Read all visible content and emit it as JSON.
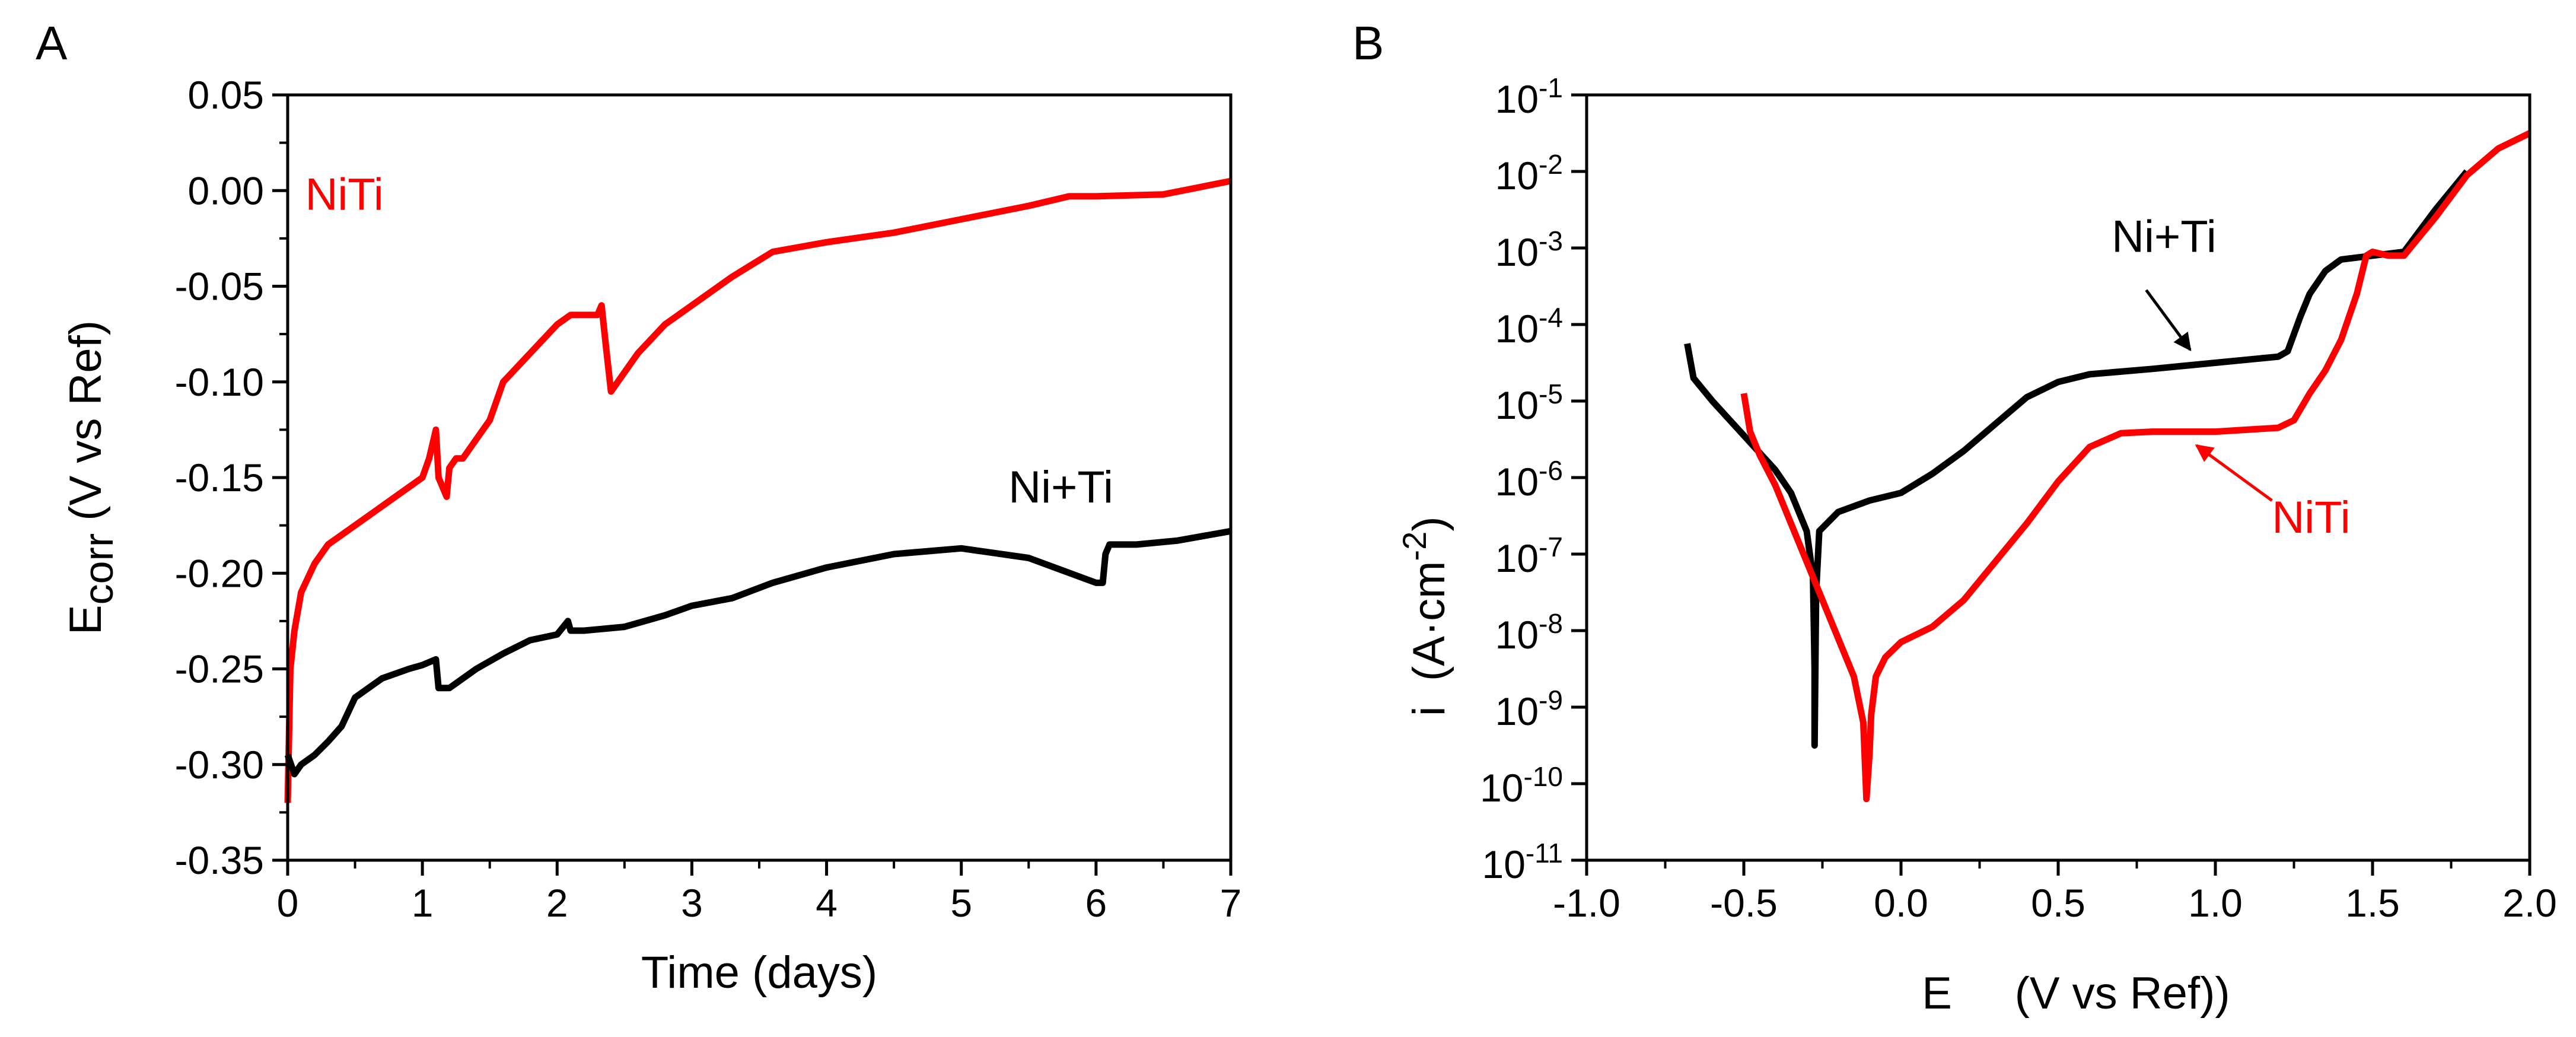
{
  "figure": {
    "panels": [
      "A",
      "B"
    ]
  },
  "chart_data": [
    {
      "panel": "A",
      "type": "line",
      "title": "",
      "xlabel": "Time (days)",
      "ylabel_main": "E",
      "ylabel_sub": "corr",
      "ylabel_rest": " (V vs Ref)",
      "xlim": [
        0,
        7
      ],
      "ylim": [
        -0.35,
        0.05
      ],
      "xticks": [
        0,
        1,
        2,
        3,
        4,
        5,
        6,
        7
      ],
      "xtick_labels": [
        "0",
        "1",
        "2",
        "3",
        "4",
        "5",
        "6",
        "7"
      ],
      "yticks": [
        -0.35,
        -0.3,
        -0.25,
        -0.2,
        -0.15,
        -0.1,
        -0.05,
        0.0,
        0.05
      ],
      "ytick_labels": [
        "-0.35",
        "-0.30",
        "-0.25",
        "-0.20",
        "-0.15",
        "-0.10",
        "-0.05",
        "0.00",
        "0.05"
      ],
      "grid": false,
      "series": [
        {
          "name": "NiTi",
          "color": "#ff0000",
          "x": [
            0,
            0.02,
            0.05,
            0.1,
            0.2,
            0.3,
            0.5,
            0.7,
            0.9,
            1.0,
            1.05,
            1.1,
            1.12,
            1.15,
            1.18,
            1.2,
            1.25,
            1.3,
            1.4,
            1.5,
            1.6,
            1.8,
            2.0,
            2.1,
            2.2,
            2.3,
            2.33,
            2.36,
            2.4,
            2.45,
            2.5,
            2.6,
            2.8,
            3.0,
            3.3,
            3.6,
            4.0,
            4.5,
            5.0,
            5.5,
            5.8,
            6.0,
            6.5,
            7.0
          ],
          "y": [
            -0.32,
            -0.25,
            -0.23,
            -0.21,
            -0.195,
            -0.185,
            -0.175,
            -0.165,
            -0.155,
            -0.15,
            -0.14,
            -0.125,
            -0.15,
            -0.155,
            -0.16,
            -0.145,
            -0.14,
            -0.14,
            -0.13,
            -0.12,
            -0.1,
            -0.085,
            -0.07,
            -0.065,
            -0.065,
            -0.065,
            -0.06,
            -0.08,
            -0.105,
            -0.1,
            -0.095,
            -0.085,
            -0.07,
            -0.06,
            -0.045,
            -0.032,
            -0.027,
            -0.022,
            -0.015,
            -0.008,
            -0.003,
            -0.003,
            -0.002,
            0.005
          ]
        },
        {
          "name": "Ni+Ti",
          "color": "#000000",
          "x": [
            0,
            0.05,
            0.1,
            0.2,
            0.3,
            0.4,
            0.5,
            0.7,
            0.9,
            1.0,
            1.1,
            1.12,
            1.2,
            1.4,
            1.6,
            1.8,
            2.0,
            2.08,
            2.1,
            2.2,
            2.5,
            2.8,
            3.0,
            3.3,
            3.6,
            4.0,
            4.5,
            5.0,
            5.5,
            6.0,
            6.05,
            6.07,
            6.1,
            6.3,
            6.6,
            7.0
          ],
          "y": [
            -0.295,
            -0.305,
            -0.3,
            -0.295,
            -0.288,
            -0.28,
            -0.265,
            -0.255,
            -0.25,
            -0.248,
            -0.245,
            -0.26,
            -0.26,
            -0.25,
            -0.242,
            -0.235,
            -0.232,
            -0.225,
            -0.23,
            -0.23,
            -0.228,
            -0.222,
            -0.217,
            -0.213,
            -0.205,
            -0.197,
            -0.19,
            -0.187,
            -0.192,
            -0.205,
            -0.205,
            -0.19,
            -0.185,
            -0.185,
            -0.183,
            -0.178
          ]
        }
      ],
      "annotations": [
        {
          "text": "NiTi",
          "color": "#ff0000",
          "x": 0.13,
          "y": -0.01,
          "anchor": "start"
        },
        {
          "text": "Ni+Ti",
          "color": "#000000",
          "x": 5.35,
          "y": -0.163,
          "anchor": "start"
        }
      ]
    },
    {
      "panel": "B",
      "type": "line",
      "title": "",
      "xlabel": "E     (V vs Ref))",
      "ylabel": "i  (A·cm",
      "ylabel_sup": "-2",
      "ylabel_close": ")",
      "xlim": [
        -1.0,
        2.0
      ],
      "ylog": true,
      "ylim_exp": [
        -11,
        -1
      ],
      "xticks": [
        -1.0,
        -0.5,
        0.0,
        0.5,
        1.0,
        1.5,
        2.0
      ],
      "xtick_labels": [
        "-1.0",
        "-0.5",
        "0.0",
        "0.5",
        "1.0",
        "1.5",
        "2.0"
      ],
      "yticks_exp": [
        -11,
        -10,
        -9,
        -8,
        -7,
        -6,
        -5,
        -4,
        -3,
        -2,
        -1
      ],
      "ytick_base": "10",
      "ytick_exponents": [
        "-11",
        "-10",
        "-9",
        "-8",
        "-7",
        "-6",
        "-5",
        "-4",
        "-3",
        "-2",
        "-1"
      ],
      "grid": false,
      "series": [
        {
          "name": "Ni+Ti",
          "color": "#000000",
          "x": [
            -0.68,
            -0.66,
            -0.6,
            -0.5,
            -0.4,
            -0.35,
            -0.3,
            -0.28,
            -0.275,
            -0.275,
            -0.27,
            -0.26,
            -0.2,
            -0.1,
            0.0,
            0.1,
            0.2,
            0.3,
            0.4,
            0.5,
            0.6,
            0.8,
            1.0,
            1.2,
            1.23,
            1.27,
            1.3,
            1.35,
            1.4,
            1.5,
            1.6,
            1.7,
            1.8
          ],
          "y_log": [
            -4.25,
            -4.7,
            -5.0,
            -5.45,
            -5.9,
            -6.2,
            -6.7,
            -7.3,
            -8.5,
            -9.5,
            -7.5,
            -6.7,
            -6.45,
            -6.3,
            -6.2,
            -5.95,
            -5.65,
            -5.3,
            -4.95,
            -4.75,
            -4.65,
            -4.58,
            -4.5,
            -4.42,
            -4.35,
            -3.9,
            -3.6,
            -3.3,
            -3.15,
            -3.1,
            -3.05,
            -2.5,
            -2.0
          ]
        },
        {
          "name": "NiTi",
          "color": "#ff0000",
          "x": [
            -0.5,
            -0.48,
            -0.45,
            -0.4,
            -0.35,
            -0.3,
            -0.25,
            -0.2,
            -0.15,
            -0.12,
            -0.11,
            -0.1,
            -0.095,
            -0.08,
            -0.05,
            0.0,
            0.1,
            0.2,
            0.3,
            0.4,
            0.5,
            0.6,
            0.7,
            0.8,
            1.0,
            1.2,
            1.25,
            1.3,
            1.35,
            1.4,
            1.45,
            1.48,
            1.5,
            1.55,
            1.6,
            1.7,
            1.8,
            1.9,
            2.0
          ],
          "y_log": [
            -4.9,
            -5.4,
            -5.7,
            -6.1,
            -6.6,
            -7.1,
            -7.6,
            -8.1,
            -8.6,
            -9.2,
            -10.2,
            -9.6,
            -9.1,
            -8.6,
            -8.35,
            -8.15,
            -7.95,
            -7.6,
            -7.1,
            -6.6,
            -6.05,
            -5.6,
            -5.42,
            -5.4,
            -5.4,
            -5.35,
            -5.25,
            -4.9,
            -4.6,
            -4.2,
            -3.6,
            -3.1,
            -3.05,
            -3.1,
            -3.1,
            -2.6,
            -2.05,
            -1.7,
            -1.5
          ]
        }
      ],
      "annotations": [
        {
          "text": "Ni+Ti",
          "color": "#000000",
          "x": 0.67,
          "y_log": -3.05,
          "anchor": "start"
        },
        {
          "text": "NiTi",
          "color": "#ff0000",
          "x": 1.18,
          "y_log": -6.72,
          "anchor": "start"
        }
      ],
      "arrows": [
        {
          "color": "#000000",
          "from_x": 0.78,
          "from_y_log": -3.55,
          "to_x": 0.92,
          "to_y_log": -4.33
        },
        {
          "color": "#ff0000",
          "from_x": 1.18,
          "from_y_log": -6.3,
          "to_x": 0.94,
          "to_y_log": -5.58
        }
      ]
    }
  ]
}
